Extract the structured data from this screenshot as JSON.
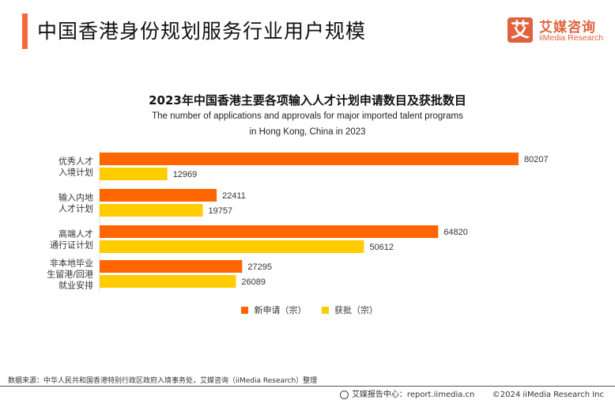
{
  "header": {
    "title": "中国香港身份规划服务行业用户规模",
    "accent_color": "#f26a3b"
  },
  "logo": {
    "mark": "艾",
    "name_cn": "艾媒咨询",
    "name_en": "iiMedia Research",
    "color": "#e0623f"
  },
  "chart_data": {
    "type": "bar",
    "orientation": "horizontal",
    "title": "2023年中国香港主要各项输入人才计划申请数目及获批数目",
    "subtitle_lines": [
      "The number of applications and approvals for major imported talent programs",
      "in Hong Kong, China in 2023"
    ],
    "categories": [
      [
        "优秀人才",
        "入境计划"
      ],
      [
        "输入内地",
        "人才计划"
      ],
      [
        "高端人才",
        "通行证计划"
      ],
      [
        "非本地毕业",
        "生留港/回港",
        "就业安排"
      ]
    ],
    "series": [
      {
        "name": "新申请（宗）",
        "color": "#ff6600",
        "values": [
          80207,
          22411,
          64820,
          27295
        ]
      },
      {
        "name": "获批（宗）",
        "color": "#ffcc00",
        "values": [
          12969,
          19757,
          50612,
          26089
        ]
      }
    ],
    "xlim": [
      0,
      80207
    ],
    "grid": false,
    "legend_position": "bottom"
  },
  "legend": {
    "items": [
      {
        "label": "新申请（宗）",
        "color": "#ff6600"
      },
      {
        "label": "获批（宗）",
        "color": "#ffcc00"
      }
    ]
  },
  "footer": {
    "source": "数据来源：中华人民共和国香港特别行政区政府入境事务处，艾媒咨询（iiMedia Research）整理",
    "report_center": "艾媒报告中心：report.iimedia.cn",
    "copyright": "©2024  iiMedia Research  Inc"
  }
}
